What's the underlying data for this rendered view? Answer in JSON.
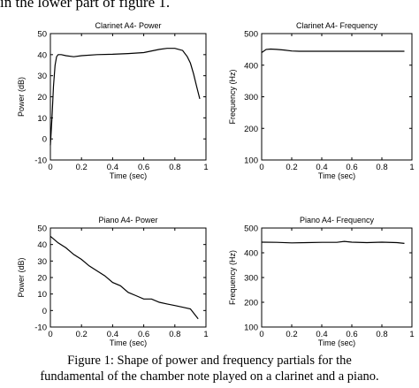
{
  "top_text": "in the lower part of figure 1.",
  "caption": {
    "line1": "Figure 1: Shape of power and frequency partials for the",
    "line2": "fundamental of the chamber note played on a clarinet and a piano."
  },
  "chart_data": [
    {
      "type": "line",
      "title": "Clarinet A4- Power",
      "xlabel": "Time (sec)",
      "ylabel": "Power (dB)",
      "xlim": [
        0,
        1
      ],
      "ylim": [
        -10,
        50
      ],
      "xticks": [
        "0",
        "0.2",
        "0.4",
        "0.6",
        "0.8",
        "1"
      ],
      "yticks": [
        "-10",
        "0",
        "10",
        "20",
        "30",
        "40",
        "50"
      ],
      "x": [
        0.0,
        0.01,
        0.02,
        0.03,
        0.04,
        0.05,
        0.07,
        0.1,
        0.15,
        0.2,
        0.3,
        0.4,
        0.5,
        0.6,
        0.7,
        0.75,
        0.8,
        0.85,
        0.88,
        0.9,
        0.92,
        0.94,
        0.96
      ],
      "y": [
        -3,
        10,
        25,
        35,
        39,
        40,
        40,
        39.5,
        39,
        39.5,
        40,
        40.2,
        40.5,
        41,
        42.5,
        43,
        43,
        42,
        39,
        36,
        31,
        25,
        19
      ]
    },
    {
      "type": "line",
      "title": "Clarinet A4- Frequency",
      "xlabel": "Time (sec)",
      "ylabel": "Frequency (Hz)",
      "xlim": [
        0,
        1
      ],
      "ylim": [
        100,
        500
      ],
      "xticks": [
        "0",
        "0.2",
        "0.4",
        "0.6",
        "0.8",
        "1"
      ],
      "yticks": [
        "100",
        "200",
        "300",
        "400",
        "500"
      ],
      "x": [
        0.0,
        0.03,
        0.06,
        0.1,
        0.15,
        0.2,
        0.25,
        0.4,
        0.6,
        0.8,
        0.95
      ],
      "y": [
        440,
        450,
        451,
        450,
        448,
        445,
        444,
        444,
        444,
        444,
        444
      ]
    },
    {
      "type": "line",
      "title": "Piano A4- Power",
      "xlabel": "Time (sec)",
      "ylabel": "Power (dB)",
      "xlim": [
        0,
        1
      ],
      "ylim": [
        -10,
        50
      ],
      "xticks": [
        "0",
        "0.2",
        "0.4",
        "0.6",
        "0.8",
        "1"
      ],
      "yticks": [
        "-10",
        "0",
        "10",
        "20",
        "30",
        "40",
        "50"
      ],
      "x": [
        0.0,
        0.05,
        0.1,
        0.15,
        0.2,
        0.25,
        0.3,
        0.35,
        0.4,
        0.45,
        0.5,
        0.55,
        0.6,
        0.65,
        0.7,
        0.75,
        0.8,
        0.85,
        0.9,
        0.95
      ],
      "y": [
        45,
        41,
        38,
        34,
        31,
        27,
        24,
        21,
        17,
        15,
        11,
        9,
        7,
        7,
        5,
        4,
        3,
        2,
        1,
        -5
      ]
    },
    {
      "type": "line",
      "title": "Piano A4- Frequency",
      "xlabel": "Time (sec)",
      "ylabel": "Frequency (Hz)",
      "xlim": [
        0,
        1
      ],
      "ylim": [
        100,
        500
      ],
      "xticks": [
        "0",
        "0.2",
        "0.4",
        "0.6",
        "0.8",
        "1"
      ],
      "yticks": [
        "100",
        "200",
        "300",
        "400",
        "500"
      ],
      "x": [
        0.0,
        0.1,
        0.2,
        0.3,
        0.4,
        0.5,
        0.55,
        0.6,
        0.7,
        0.8,
        0.9,
        0.95
      ],
      "y": [
        443,
        442,
        440,
        441,
        442,
        442,
        446,
        443,
        441,
        443,
        441,
        438
      ]
    }
  ]
}
